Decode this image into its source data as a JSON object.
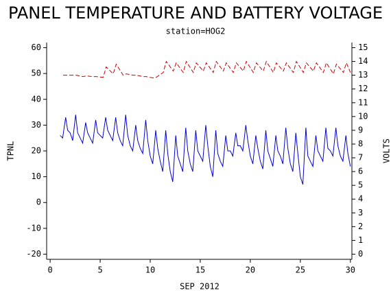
{
  "chart_data": {
    "type": "line",
    "title": "PANEL TEMPERATURE AND BATTERY VOLTAGE",
    "subtitle": "station=HOG2",
    "x_label": "SEP 2012",
    "y_label": "TPNL",
    "y2_label": "VOLTS",
    "xlim": [
      -0.35,
      30.15
    ],
    "xticks": [
      0,
      5,
      10,
      15,
      20,
      25,
      30
    ],
    "ylim": [
      -22,
      62
    ],
    "yticks": [
      -20,
      -10,
      0,
      10,
      20,
      30,
      40,
      50,
      60
    ],
    "y2lim": [
      -0.375,
      15.375
    ],
    "y2ticks": [
      0,
      1,
      2,
      3,
      4,
      5,
      6,
      7,
      8,
      9,
      10,
      11,
      12,
      13,
      14,
      15
    ],
    "series": [
      {
        "name": "TPNL",
        "color": "#0000cc",
        "dashed": false,
        "x": [
          1,
          1.25,
          1.55,
          1.75,
          2,
          2.25,
          2.55,
          2.75,
          3,
          3.25,
          3.55,
          3.75,
          4,
          4.25,
          4.55,
          4.75,
          5,
          5.25,
          5.55,
          5.75,
          6,
          6.25,
          6.55,
          6.75,
          7,
          7.25,
          7.55,
          7.75,
          8,
          8.25,
          8.55,
          8.75,
          9,
          9.25,
          9.55,
          9.75,
          10,
          10.25,
          10.55,
          10.75,
          11,
          11.25,
          11.55,
          11.75,
          12,
          12.25,
          12.55,
          12.75,
          13,
          13.25,
          13.55,
          13.75,
          14,
          14.25,
          14.55,
          14.75,
          15,
          15.25,
          15.55,
          15.75,
          16,
          16.25,
          16.55,
          16.75,
          17,
          17.25,
          17.55,
          17.75,
          18,
          18.25,
          18.55,
          18.75,
          19,
          19.25,
          19.55,
          19.75,
          20,
          20.25,
          20.55,
          20.75,
          21,
          21.25,
          21.55,
          21.75,
          22,
          22.25,
          22.55,
          22.75,
          23,
          23.25,
          23.55,
          23.75,
          24,
          24.25,
          24.55,
          24.75,
          25,
          25.25,
          25.55,
          25.75,
          26,
          26.25,
          26.55,
          26.75,
          27,
          27.25,
          27.55,
          27.75,
          28,
          28.25,
          28.55,
          28.75,
          29,
          29.25,
          29.55,
          29.75,
          30
        ],
        "values": [
          26,
          25,
          33,
          28,
          27,
          24,
          34,
          27,
          25,
          23,
          31,
          27,
          25,
          23,
          32,
          27,
          26,
          25,
          33,
          28,
          26,
          24,
          33,
          27,
          24,
          22,
          34,
          26,
          22,
          20,
          30,
          24,
          21,
          19,
          32,
          24,
          18,
          15,
          28,
          21,
          16,
          12,
          28,
          19,
          12,
          8,
          26,
          18,
          15,
          12,
          29,
          20,
          15,
          12,
          28,
          20,
          18,
          16,
          30,
          22,
          14,
          10,
          28,
          19,
          16,
          14,
          26,
          20,
          20,
          18,
          27,
          22,
          22,
          20,
          30,
          24,
          18,
          15,
          26,
          21,
          16,
          13,
          28,
          20,
          17,
          14,
          26,
          20,
          18,
          15,
          29,
          21,
          15,
          12,
          27,
          19,
          10,
          7,
          29,
          18,
          16,
          14,
          26,
          20,
          18,
          16,
          29,
          21,
          20,
          18,
          29,
          22,
          18,
          16,
          26,
          19,
          14
        ]
      },
      {
        "name": "VOLTS",
        "color": "#cc0000",
        "dashed": true,
        "axis": "y2",
        "x": [
          1.3,
          1.6,
          2.3,
          2.6,
          3.3,
          3.6,
          4.3,
          4.6,
          5.3,
          5.6,
          6.3,
          6.6,
          7.3,
          7.6,
          8.3,
          8.6,
          9.3,
          9.6,
          10.3,
          10.6,
          11.3,
          11.6,
          12.3,
          12.6,
          13.3,
          13.6,
          14.3,
          14.6,
          15.3,
          15.6,
          16.3,
          16.6,
          17.3,
          17.6,
          18.3,
          18.6,
          19.3,
          19.6,
          20.3,
          20.6,
          21.3,
          21.6,
          22.3,
          22.6,
          23.3,
          23.6,
          24.3,
          24.6,
          25.3,
          25.6,
          26.3,
          26.6,
          27.3,
          27.6,
          28.3,
          28.6,
          29.3,
          29.6,
          30
        ],
        "values": [
          13.0,
          13.0,
          13.0,
          13.0,
          12.9,
          12.95,
          12.9,
          12.9,
          12.85,
          13.6,
          13.1,
          13.8,
          13.0,
          13.1,
          13.0,
          13.0,
          12.9,
          12.9,
          12.8,
          12.85,
          13.2,
          14.0,
          13.3,
          13.9,
          13.2,
          14.0,
          13.2,
          13.9,
          13.3,
          13.9,
          13.2,
          14.0,
          13.3,
          13.9,
          13.2,
          13.9,
          13.3,
          14.0,
          13.2,
          13.9,
          13.3,
          14.0,
          13.2,
          13.9,
          13.3,
          13.9,
          13.2,
          14.0,
          13.2,
          13.9,
          13.3,
          13.9,
          13.2,
          13.9,
          13.1,
          13.8,
          13.2,
          13.9,
          13.2
        ]
      }
    ]
  }
}
